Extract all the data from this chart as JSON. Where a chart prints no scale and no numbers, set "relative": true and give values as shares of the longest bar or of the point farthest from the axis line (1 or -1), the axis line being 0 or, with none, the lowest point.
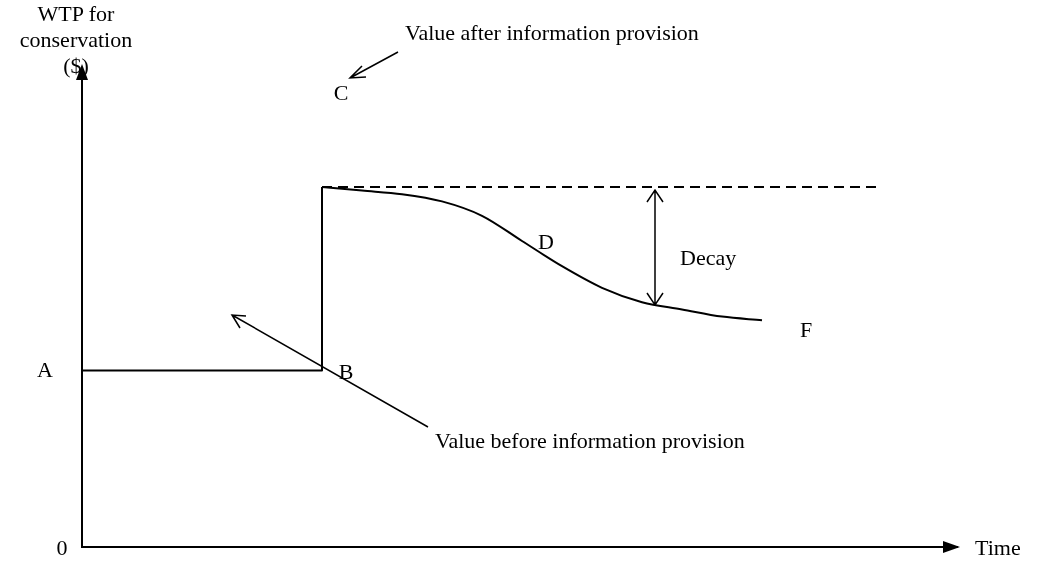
{
  "chart_data": {
    "type": "line",
    "relative": true,
    "tick_labels": false,
    "marker": "none",
    "xlabel": "Time",
    "ylabel": "WTP for conservation ($)",
    "categories": [
      null,
      null,
      null,
      null,
      null,
      null,
      null,
      null,
      null,
      null,
      null,
      null,
      null,
      null,
      null,
      null,
      null,
      null,
      null,
      null,
      null,
      null,
      null
    ],
    "series": [
      {
        "type": "step",
        "color": "#000000",
        "values": [
          0.49,
          0.49,
          0.49,
          0.49,
          0.49,
          0.49,
          1,
          null,
          null,
          null,
          null,
          null,
          null,
          null,
          null,
          null,
          null,
          null,
          null,
          null,
          null,
          null,
          null
        ]
      },
      {
        "type": "line",
        "color": "#000000",
        "values": [
          null,
          null,
          null,
          null,
          null,
          null,
          1,
          0.99,
          0.98,
          0.96,
          0.92,
          0.85,
          0.78,
          0.72,
          0.68,
          0.66,
          0.64,
          0.63,
          null,
          null,
          null,
          null,
          null
        ]
      },
      {
        "type": "line",
        "line_style": "dashed",
        "color": "#000000",
        "values": [
          null,
          null,
          null,
          null,
          null,
          null,
          1,
          1,
          1,
          1,
          1,
          1,
          1,
          1,
          1,
          1,
          1,
          1,
          1,
          1,
          1,
          null,
          null
        ]
      }
    ],
    "annotations": [
      "0",
      "A",
      "B",
      "C",
      "D",
      "F",
      "Value after information provision",
      "Value before information provision",
      "Decay"
    ]
  }
}
